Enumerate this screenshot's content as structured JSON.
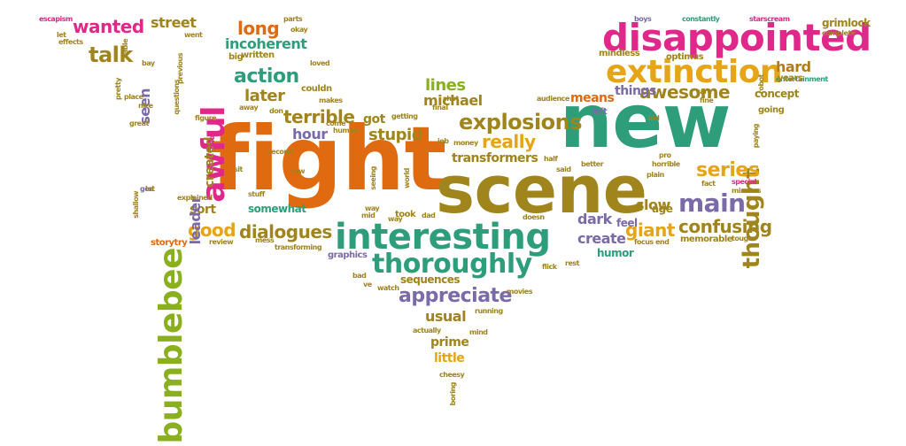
{
  "palette": {
    "pink": "#e0288a",
    "orange": "#e06a10",
    "gold": "#e6a417",
    "green": "#2e9e7a",
    "olive": "#a0841c",
    "purple": "#7a6aa8",
    "brown": "#b07c18",
    "lime": "#8ab020"
  },
  "words": [
    "fight",
    "scene",
    "new",
    "interesting",
    "disappointed",
    "extinction",
    "thoroughly",
    "bumblebee",
    "awful",
    "main",
    "wanted",
    "talk",
    "long",
    "explosions",
    "thought",
    "terrible",
    "action",
    "appreciate",
    "dialogues",
    "series",
    "confusing",
    "giant",
    "awesome",
    "really",
    "good",
    "dark",
    "later",
    "lines",
    "michael",
    "create",
    "usual",
    "slow",
    "hard",
    "incoherent",
    "prime",
    "little",
    "stupid",
    "means",
    "hour",
    "sort",
    "seen",
    "leader",
    "created",
    "street",
    "got",
    "things",
    "somewhat",
    "transformers",
    "feel",
    "age",
    "memorable",
    "humor",
    "entertainment",
    "mindless",
    "optimus",
    "grimlock",
    "concept",
    "years",
    "going",
    "graphics",
    "sequences",
    "escapism",
    "parts",
    "boys",
    "constantly",
    "starscream",
    "complete",
    "effects",
    "written",
    "big",
    "loved",
    "pretty",
    "bay",
    "nice",
    "great",
    "figure",
    "shallow",
    "god",
    "review",
    "storytry",
    "couldn",
    "come",
    "away",
    "second",
    "stuff",
    "transforming",
    "audience",
    "left",
    "half",
    "job",
    "money",
    "better",
    "special",
    "minutes",
    "tough",
    "fact",
    "weren",
    "doesn",
    "took",
    "dad",
    "watch",
    "movies",
    "running",
    "actually",
    "mind",
    "cheesy",
    "boring",
    "bad",
    "rest",
    "flick",
    "focus",
    "end",
    "world",
    "mid",
    "ve",
    "care",
    "okay",
    "human",
    "place",
    "plot",
    "seeing",
    "questions",
    "explained",
    "plain",
    "saw",
    "fine",
    "lot",
    "let",
    "went",
    "able",
    "makes",
    "mess",
    "getting",
    "kid",
    "way",
    "previous",
    "don",
    "pro",
    "sit",
    "paying",
    "robot",
    "horrible",
    "said",
    "shot",
    "final",
    "way"
  ]
}
